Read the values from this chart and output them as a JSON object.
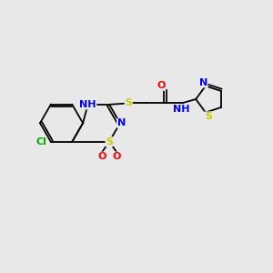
{
  "bg_color": "#e8e8e8",
  "atom_colors": {
    "C": "#000000",
    "N": "#0000ff",
    "O": "#ff0000",
    "S": "#cccc00",
    "Cl": "#00aa00",
    "H": "#6688aa"
  },
  "bond_color": "#000000",
  "font_size_atom": 8.0,
  "lw": 1.3
}
